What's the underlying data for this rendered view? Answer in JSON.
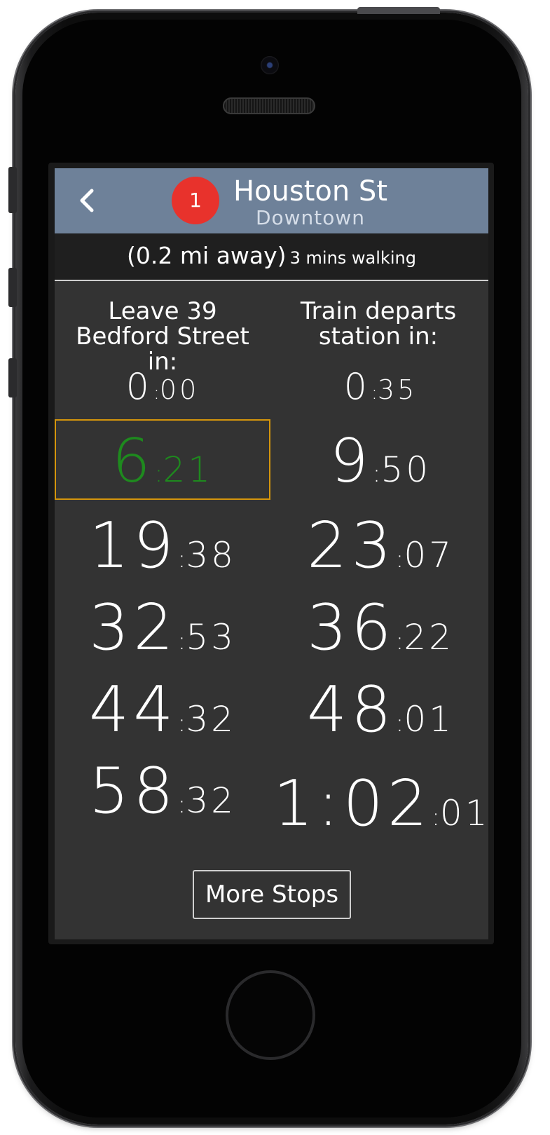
{
  "header": {
    "back_icon": "chevron-left-icon",
    "route_number": "1",
    "route_color": "#e8322c",
    "station": "Houston St",
    "direction": "Downtown",
    "background": "#6e8199"
  },
  "distance": {
    "main": "(0.2 mi away)",
    "walking": "3 mins walking"
  },
  "columns": {
    "leave_header": "Leave 39\nBedford Street in:",
    "train_header": "Train departs\nstation in:"
  },
  "times": {
    "leave": [
      {
        "min": "0",
        "sec": "00"
      },
      {
        "min": "6",
        "sec": "21"
      },
      {
        "min": "19",
        "sec": "38"
      },
      {
        "min": "32",
        "sec": "53"
      },
      {
        "min": "44",
        "sec": "32"
      },
      {
        "min": "58",
        "sec": "32"
      }
    ],
    "train": [
      {
        "min": "0",
        "sec": "35"
      },
      {
        "min": "9",
        "sec": "50"
      },
      {
        "min": "23",
        "sec": "07"
      },
      {
        "min": "36",
        "sec": "22"
      },
      {
        "min": "48",
        "sec": "01"
      },
      {
        "min": "1:02",
        "sec": "01"
      }
    ],
    "highlight_color": "#1e8a1e",
    "highlight_border": "#d4950c"
  },
  "footer": {
    "more_label": "More Stops"
  }
}
